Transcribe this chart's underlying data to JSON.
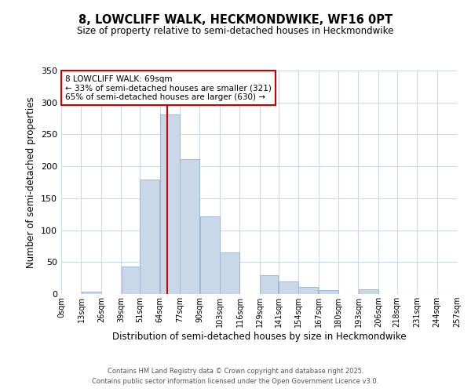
{
  "title": "8, LOWCLIFF WALK, HECKMONDWIKE, WF16 0PT",
  "subtitle": "Size of property relative to semi-detached houses in Heckmondwike",
  "xlabel": "Distribution of semi-detached houses by size in Heckmondwike",
  "ylabel": "Number of semi-detached properties",
  "bar_color": "#c8d8e8",
  "bar_edgecolor": "#a0b8d0",
  "bin_edges": [
    0,
    13,
    26,
    39,
    51,
    64,
    77,
    90,
    103,
    116,
    129,
    141,
    154,
    167,
    180,
    193,
    206,
    218,
    231,
    244,
    257
  ],
  "bin_labels": [
    "0sqm",
    "13sqm",
    "26sqm",
    "39sqm",
    "51sqm",
    "64sqm",
    "77sqm",
    "90sqm",
    "103sqm",
    "116sqm",
    "129sqm",
    "141sqm",
    "154sqm",
    "167sqm",
    "180sqm",
    "193sqm",
    "206sqm",
    "218sqm",
    "231sqm",
    "244sqm",
    "257sqm"
  ],
  "counts": [
    0,
    4,
    0,
    43,
    179,
    281,
    211,
    122,
    65,
    0,
    29,
    20,
    11,
    6,
    0,
    7,
    0,
    0,
    0,
    0
  ],
  "property_value": 69,
  "property_line_color": "#cc0000",
  "annotation_title": "8 LOWCLIFF WALK: 69sqm",
  "annotation_line1": "← 33% of semi-detached houses are smaller (321)",
  "annotation_line2": "65% of semi-detached houses are larger (630) →",
  "annotation_box_color": "#ffffff",
  "annotation_box_edgecolor": "#cc0000",
  "ylim": [
    0,
    350
  ],
  "yticks": [
    0,
    50,
    100,
    150,
    200,
    250,
    300,
    350
  ],
  "footer1": "Contains HM Land Registry data © Crown copyright and database right 2025.",
  "footer2": "Contains public sector information licensed under the Open Government Licence v3.0.",
  "background_color": "#ffffff",
  "grid_color": "#d0d8e8"
}
